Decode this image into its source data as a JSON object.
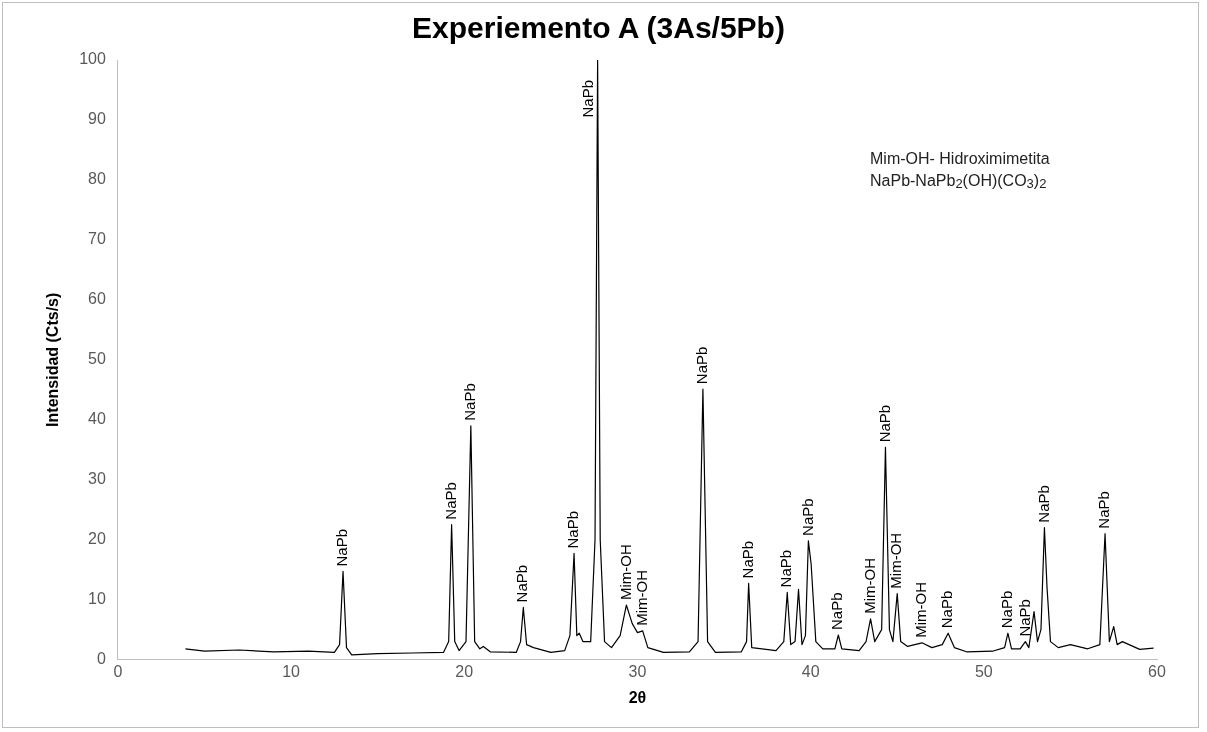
{
  "chart_data": {
    "type": "line",
    "title": "Experiemento A (3As/5Pb)",
    "xlabel": "2θ",
    "ylabel": "Intensidad (Cts/s)",
    "x": [
      3.9,
      5,
      7,
      9,
      11,
      12.5,
      12.8,
      13.0,
      13.2,
      13.5,
      15,
      17,
      18.8,
      19.1,
      19.27,
      19.45,
      19.7,
      20.1,
      20.38,
      20.6,
      20.9,
      21.1,
      21.5,
      23,
      23.25,
      23.41,
      23.6,
      24,
      25,
      25.8,
      26.1,
      26.34,
      26.5,
      26.64,
      26.85,
      27.3,
      27.55,
      27.7,
      27.85,
      28.1,
      28.5,
      29.0,
      29.36,
      29.7,
      30.0,
      30.3,
      30.6,
      31.5,
      33,
      33.5,
      33.78,
      34.05,
      34.5,
      36.0,
      36.3,
      36.42,
      36.6,
      38,
      38.45,
      38.65,
      38.85,
      39.1,
      39.3,
      39.5,
      39.7,
      39.87,
      40.03,
      40.3,
      40.7,
      41.4,
      41.6,
      41.8,
      42.8,
      43.2,
      43.46,
      43.7,
      44.1,
      44.32,
      44.55,
      44.75,
      45.0,
      45.2,
      45.6,
      46.43,
      47,
      47.6,
      47.94,
      48.3,
      49,
      50.5,
      51.2,
      51.39,
      51.6,
      52.1,
      52.4,
      52.6,
      52.9,
      53.1,
      53.3,
      53.5,
      53.65,
      53.85,
      54.3,
      55,
      56,
      56.7,
      57.0,
      57.25,
      57.5,
      57.7,
      58,
      59,
      59.8
    ],
    "series": [
      {
        "color": "#000000",
        "values": [
          1.8,
          1.4,
          1.6,
          1.3,
          1.4,
          1.2,
          2.5,
          14.7,
          2.0,
          0.8,
          1.0,
          1.1,
          1.2,
          3,
          22.5,
          3,
          1.5,
          3,
          39,
          3,
          1.8,
          2.2,
          1.3,
          1.2,
          3,
          8.7,
          2.5,
          2,
          1.2,
          1.5,
          4,
          17.7,
          4,
          4.4,
          3,
          3,
          20,
          100,
          20,
          3,
          2,
          4,
          9.1,
          6,
          4.5,
          4.8,
          2,
          1.2,
          1.3,
          3,
          45.1,
          3,
          1.2,
          1.3,
          3,
          12.7,
          2,
          1.5,
          3,
          11.2,
          2.5,
          3,
          11.7,
          2.5,
          4,
          19.8,
          15.9,
          3,
          1.8,
          1.8,
          4.1,
          1.8,
          1.5,
          3,
          6.8,
          3,
          5,
          35.4,
          5,
          3,
          11,
          3,
          2.2,
          2.8,
          2,
          2.5,
          4.4,
          2,
          1.3,
          1.4,
          2,
          4.4,
          1.8,
          1.8,
          3,
          2,
          8,
          3,
          5,
          22,
          12,
          3,
          2,
          2.5,
          1.8,
          2.5,
          21,
          3,
          5.5,
          2.5,
          3,
          1.7,
          1.9
        ]
      }
    ],
    "xlim": [
      0,
      60
    ],
    "xticks": [
      0,
      10,
      20,
      30,
      40,
      50,
      60
    ],
    "ylim": [
      0,
      100
    ],
    "yticks": [
      0,
      10,
      20,
      30,
      40,
      50,
      60,
      70,
      80,
      90,
      100
    ],
    "grid": false,
    "legend": false,
    "marker": "none",
    "line_style": "solid",
    "annotations": [
      {
        "text": "NaPb",
        "x": 13.0,
        "y": 14.7
      },
      {
        "text": "NaPb",
        "x": 19.27,
        "y": 22.5
      },
      {
        "text": "NaPb",
        "x": 20.38,
        "y": 39
      },
      {
        "text": "NaPb",
        "x": 23.41,
        "y": 8.7
      },
      {
        "text": "NaPb",
        "x": 26.34,
        "y": 17.7
      },
      {
        "text": "NaPb",
        "x": 27.7,
        "y": 100
      },
      {
        "text": "Mim-OH",
        "x": 29.36,
        "y": 9.1
      },
      {
        "text": "Mim-OH",
        "x": 30.3,
        "y": 4.8
      },
      {
        "text": "NaPb",
        "x": 33.78,
        "y": 45.1
      },
      {
        "text": "NaPb",
        "x": 36.42,
        "y": 12.7
      },
      {
        "text": "NaPb",
        "x": 38.65,
        "y": 11.2
      },
      {
        "text": "NaPb",
        "x": 39.87,
        "y": 19.8
      },
      {
        "text": "NaPb",
        "x": 41.6,
        "y": 4.1
      },
      {
        "text": "Mim-OH",
        "x": 43.46,
        "y": 6.8
      },
      {
        "text": "NaPb",
        "x": 44.32,
        "y": 35.4
      },
      {
        "text": "Mim-OH",
        "x": 45.0,
        "y": 11
      },
      {
        "text": "Mim-OH",
        "x": 46.43,
        "y": 2.8
      },
      {
        "text": "NaPb",
        "x": 47.94,
        "y": 4.4
      },
      {
        "text": "NaPb",
        "x": 51.39,
        "y": 4.4
      },
      {
        "text": "NaPb",
        "x": 52.4,
        "y": 3
      },
      {
        "text": "NaPb",
        "x": 53.5,
        "y": 22
      },
      {
        "text": "NaPb",
        "x": 57.0,
        "y": 21
      },
      "Mim-OH- Hidroximimetita",
      "NaPb-NaPb$_{2}$(OH)(CO$_{3}$)$_{2}$"
    ]
  }
}
